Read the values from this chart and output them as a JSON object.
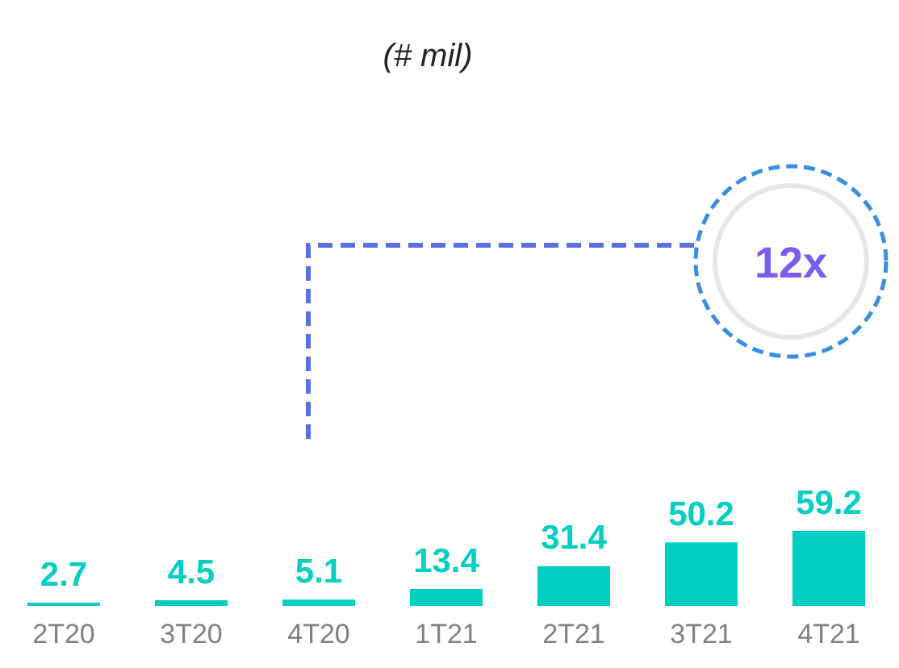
{
  "chart_data": {
    "type": "bar",
    "title": "(# mil)",
    "categories": [
      "2T20",
      "3T20",
      "4T20",
      "1T21",
      "2T21",
      "3T21",
      "4T21"
    ],
    "values": [
      2.7,
      4.5,
      5.1,
      13.4,
      31.4,
      50.2,
      59.2
    ],
    "color": "#00cfc1",
    "data_labels": true,
    "grid": false,
    "legend": false,
    "annotations": [
      "12x"
    ]
  }
}
